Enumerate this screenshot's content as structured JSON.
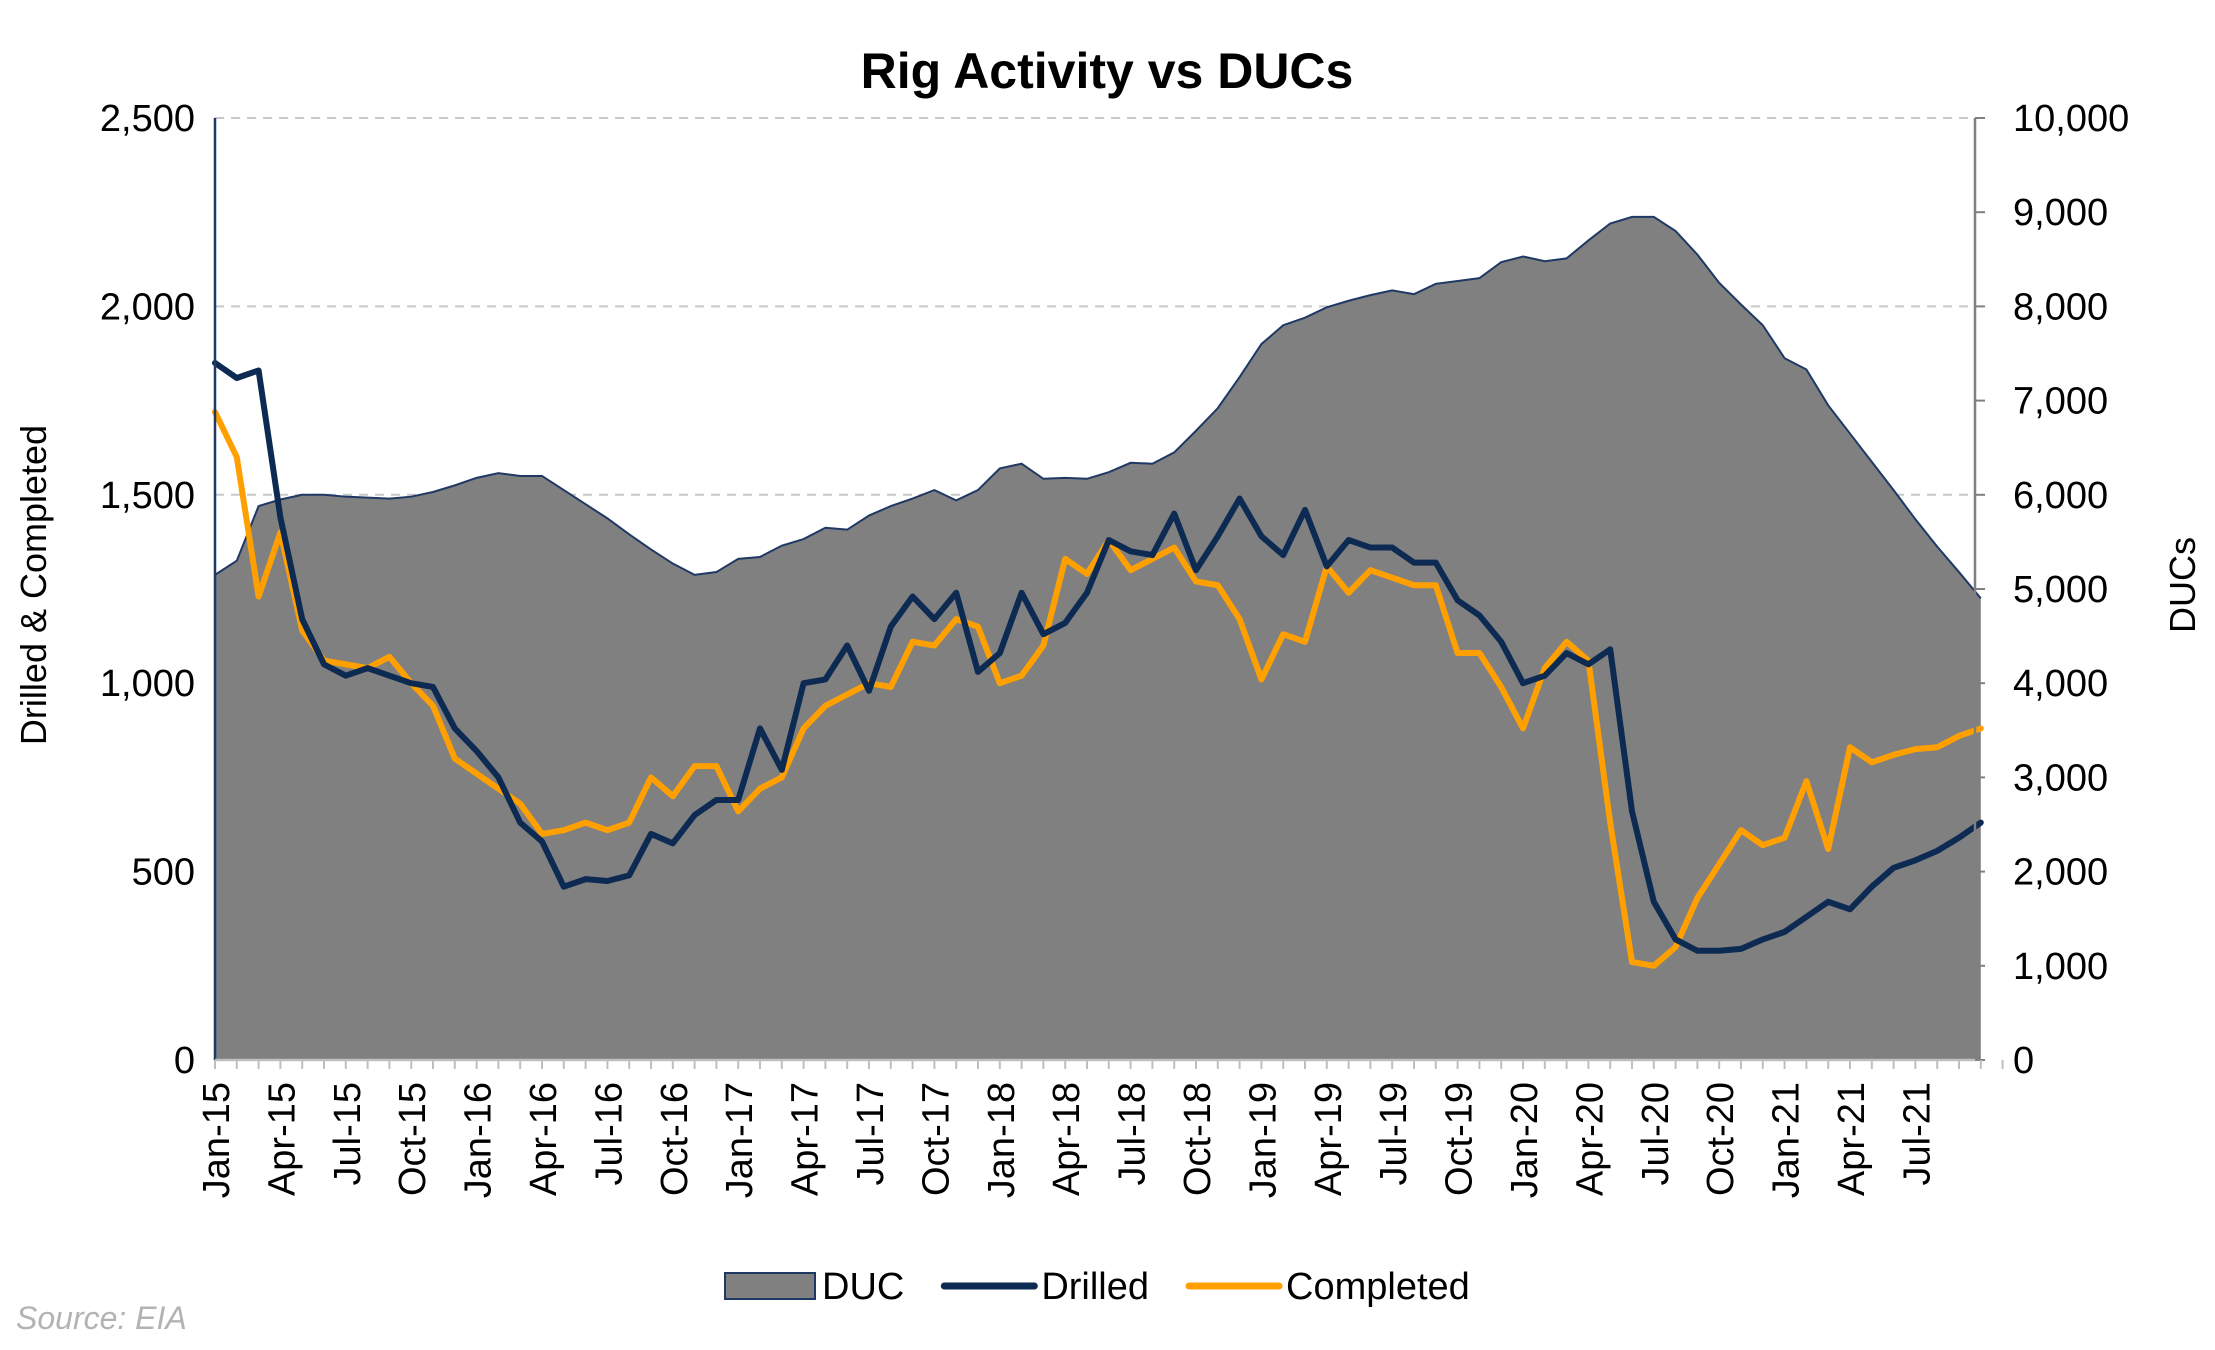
{
  "chart_data": {
    "type": "line",
    "title": "Rig Activity vs DUCs",
    "ylabel": "Drilled & Completed",
    "y2label": "DUCs",
    "ylim": [
      0,
      2500
    ],
    "y2lim": [
      0,
      10000
    ],
    "yticks": [
      "0",
      "500",
      "1,000",
      "1,500",
      "2,000",
      "2,500"
    ],
    "y2ticks": [
      "0",
      "1,000",
      "2,000",
      "3,000",
      "4,000",
      "5,000",
      "6,000",
      "7,000",
      "8,000",
      "9,000",
      "10,000"
    ],
    "grid": true,
    "legend_position": "bottom",
    "x": [
      "Jan-15",
      "Feb-15",
      "Mar-15",
      "Apr-15",
      "May-15",
      "Jun-15",
      "Jul-15",
      "Aug-15",
      "Sep-15",
      "Oct-15",
      "Nov-15",
      "Dec-15",
      "Jan-16",
      "Feb-16",
      "Mar-16",
      "Apr-16",
      "May-16",
      "Jun-16",
      "Jul-16",
      "Aug-16",
      "Sep-16",
      "Oct-16",
      "Nov-16",
      "Dec-16",
      "Jan-17",
      "Feb-17",
      "Mar-17",
      "Apr-17",
      "May-17",
      "Jun-17",
      "Jul-17",
      "Aug-17",
      "Sep-17",
      "Oct-17",
      "Nov-17",
      "Dec-17",
      "Jan-18",
      "Feb-18",
      "Mar-18",
      "Apr-18",
      "May-18",
      "Jun-18",
      "Jul-18",
      "Aug-18",
      "Sep-18",
      "Oct-18",
      "Nov-18",
      "Dec-18",
      "Jan-19",
      "Feb-19",
      "Mar-19",
      "Apr-19",
      "May-19",
      "Jun-19",
      "Jul-19",
      "Aug-19",
      "Sep-19",
      "Oct-19",
      "Nov-19",
      "Dec-19",
      "Jan-20",
      "Feb-20",
      "Mar-20",
      "Apr-20",
      "May-20",
      "Jun-20",
      "Jul-20",
      "Aug-20",
      "Sep-20",
      "Oct-20",
      "Nov-20",
      "Dec-20",
      "Jan-21",
      "Feb-21",
      "Mar-21",
      "Apr-21",
      "May-21",
      "Jun-21",
      "Jul-21",
      "Aug-21",
      "Sep-21",
      "Oct-21"
    ],
    "xtick_labels": [
      "Jan-15",
      "Apr-15",
      "Jul-15",
      "Oct-15",
      "Jan-16",
      "Apr-16",
      "Jul-16",
      "Oct-16",
      "Jan-17",
      "Apr-17",
      "Jul-17",
      "Oct-17",
      "Jan-18",
      "Apr-18",
      "Jul-18",
      "Oct-18",
      "Jan-19",
      "Apr-19",
      "Jul-19",
      "Oct-19",
      "Jan-20",
      "Apr-20",
      "Jul-20",
      "Oct-20",
      "Jan-21",
      "Apr-21",
      "Jul-21"
    ],
    "series": [
      {
        "name": "DUC",
        "axis": "right",
        "kind": "area",
        "color": "#808080",
        "edge_color": "#1f3864",
        "values": [
          5150,
          5300,
          5880,
          5950,
          6000,
          6000,
          5980,
          5970,
          5960,
          5980,
          6030,
          6100,
          6180,
          6230,
          6200,
          6200,
          6050,
          5900,
          5750,
          5580,
          5420,
          5270,
          5150,
          5180,
          5320,
          5340,
          5460,
          5530,
          5650,
          5630,
          5780,
          5880,
          5960,
          6050,
          5940,
          6050,
          6280,
          6330,
          6170,
          6180,
          6170,
          6240,
          6340,
          6330,
          6450,
          6680,
          6920,
          7250,
          7600,
          7800,
          7880,
          7990,
          8060,
          8120,
          8170,
          8130,
          8240,
          8270,
          8300,
          8470,
          8530,
          8480,
          8510,
          8700,
          8880,
          8950,
          8950,
          8800,
          8550,
          8250,
          8020,
          7800,
          7450,
          7330,
          6950,
          6650,
          6350,
          6050,
          5740,
          5450,
          5180,
          4900
        ]
      },
      {
        "name": "Drilled",
        "axis": "left",
        "kind": "line",
        "color": "#0d2a52",
        "values": [
          1850,
          1810,
          1830,
          1440,
          1170,
          1050,
          1020,
          1040,
          1020,
          1000,
          990,
          880,
          820,
          750,
          630,
          580,
          460,
          480,
          475,
          490,
          600,
          575,
          650,
          690,
          690,
          880,
          770,
          1000,
          1010,
          1100,
          980,
          1150,
          1230,
          1170,
          1240,
          1030,
          1080,
          1240,
          1130,
          1160,
          1240,
          1380,
          1350,
          1340,
          1450,
          1300,
          1390,
          1490,
          1390,
          1340,
          1460,
          1310,
          1380,
          1360,
          1360,
          1320,
          1320,
          1220,
          1180,
          1110,
          1000,
          1020,
          1080,
          1050,
          1090,
          660,
          420,
          320,
          290,
          290,
          295,
          320,
          340,
          380,
          420,
          400,
          460,
          510,
          530,
          555,
          590,
          630
        ]
      },
      {
        "name": "Completed",
        "axis": "left",
        "kind": "line",
        "color": "#ffa000",
        "values": [
          1720,
          1600,
          1230,
          1400,
          1140,
          1060,
          1050,
          1040,
          1070,
          1000,
          940,
          800,
          760,
          720,
          680,
          600,
          610,
          630,
          610,
          630,
          750,
          700,
          780,
          780,
          660,
          720,
          750,
          880,
          940,
          970,
          1000,
          990,
          1110,
          1100,
          1170,
          1150,
          1000,
          1020,
          1100,
          1330,
          1290,
          1380,
          1300,
          1330,
          1360,
          1270,
          1260,
          1170,
          1010,
          1130,
          1110,
          1310,
          1240,
          1300,
          1280,
          1260,
          1260,
          1080,
          1080,
          990,
          880,
          1040,
          1110,
          1060,
          630,
          260,
          250,
          300,
          430,
          520,
          610,
          570,
          590,
          740,
          560,
          830,
          790,
          810,
          825,
          830,
          860,
          880
        ]
      }
    ]
  },
  "source": "Source: EIA"
}
